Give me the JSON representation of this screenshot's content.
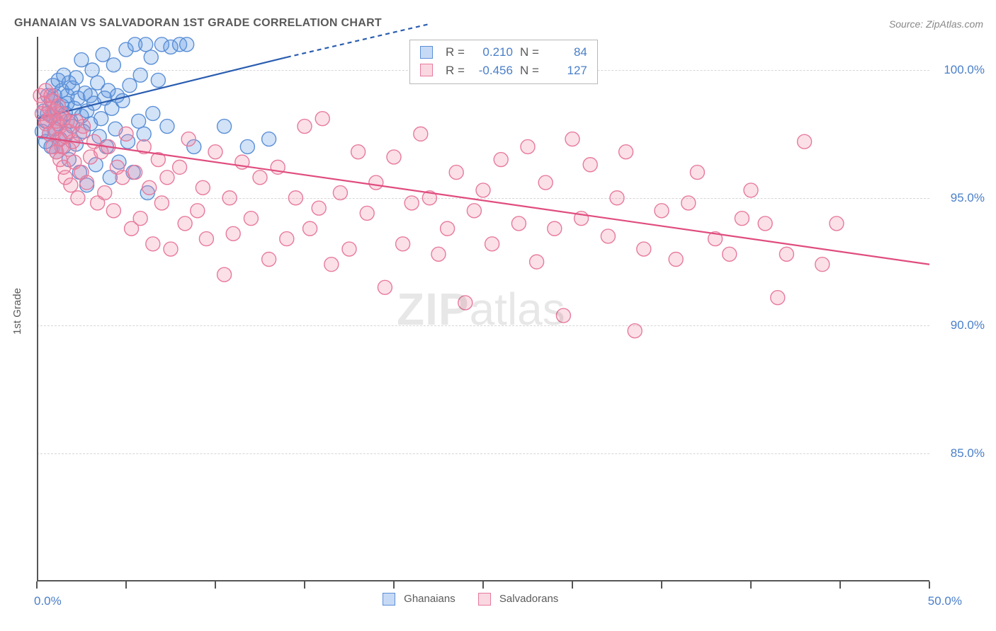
{
  "chart": {
    "type": "scatter",
    "title": "GHANAIAN VS SALVADORAN 1ST GRADE CORRELATION CHART",
    "source": "Source: ZipAtlas.com",
    "ylabel": "1st Grade",
    "background_color": "#ffffff",
    "title_color": "#5a5a5a",
    "title_fontsize": 16,
    "label_fontsize": 15,
    "tick_color": "#4a7fc9",
    "tick_fontsize": 17,
    "axis_color": "#555555",
    "grid_color": "#d6d6d6",
    "watermark": {
      "zip": "ZIP",
      "atlas": "atlas"
    },
    "xlim": [
      0,
      50
    ],
    "ylim": [
      80,
      101.3
    ],
    "xtick_labels": [
      {
        "v": 0,
        "label": "0.0%"
      },
      {
        "v": 50,
        "label": "50.0%"
      }
    ],
    "xtick_marks": [
      0,
      5,
      10,
      15,
      20,
      25,
      30,
      35,
      40,
      45,
      50
    ],
    "ytick_labels": [
      {
        "v": 85,
        "label": "85.0%"
      },
      {
        "v": 90,
        "label": "90.0%"
      },
      {
        "v": 95,
        "label": "95.0%"
      },
      {
        "v": 100,
        "label": "100.0%"
      }
    ],
    "marker_radius": 10,
    "marker_stroke_width": 1.4,
    "line_width": 2.2,
    "series": [
      {
        "name": "Ghanaians",
        "color_fill": "rgba(95,150,225,0.28)",
        "color_stroke": "#5a8fd6",
        "line_color": "#2a5db0",
        "R": "0.210",
        "N": "84",
        "trend": {
          "x1": 0,
          "y1": 98.1,
          "x2_solid": 14,
          "y2_solid": 100.5,
          "x2_dash": 22,
          "y2_dash": 101.8
        },
        "points": [
          [
            0.3,
            97.6
          ],
          [
            0.4,
            98.4
          ],
          [
            0.5,
            98.0
          ],
          [
            0.5,
            97.2
          ],
          [
            0.6,
            99.0
          ],
          [
            0.6,
            98.3
          ],
          [
            0.7,
            97.5
          ],
          [
            0.8,
            98.8
          ],
          [
            0.8,
            97.0
          ],
          [
            0.9,
            99.4
          ],
          [
            0.9,
            98.2
          ],
          [
            1.0,
            97.7
          ],
          [
            1.0,
            99.0
          ],
          [
            1.1,
            98.5
          ],
          [
            1.1,
            96.8
          ],
          [
            1.2,
            97.9
          ],
          [
            1.2,
            99.6
          ],
          [
            1.3,
            98.1
          ],
          [
            1.3,
            97.3
          ],
          [
            1.4,
            99.2
          ],
          [
            1.4,
            98.6
          ],
          [
            1.5,
            97.0
          ],
          [
            1.5,
            99.8
          ],
          [
            1.6,
            98.3
          ],
          [
            1.6,
            97.5
          ],
          [
            1.7,
            99.0
          ],
          [
            1.7,
            98.7
          ],
          [
            1.8,
            96.5
          ],
          [
            1.8,
            99.5
          ],
          [
            1.9,
            98.0
          ],
          [
            2.0,
            97.8
          ],
          [
            2.0,
            99.3
          ],
          [
            2.1,
            98.5
          ],
          [
            2.2,
            97.1
          ],
          [
            2.2,
            99.7
          ],
          [
            2.3,
            98.9
          ],
          [
            2.4,
            96.0
          ],
          [
            2.5,
            98.2
          ],
          [
            2.5,
            100.4
          ],
          [
            2.6,
            97.6
          ],
          [
            2.7,
            99.1
          ],
          [
            2.8,
            98.4
          ],
          [
            2.8,
            95.5
          ],
          [
            3.0,
            99.0
          ],
          [
            3.0,
            97.9
          ],
          [
            3.1,
            100.0
          ],
          [
            3.2,
            98.7
          ],
          [
            3.3,
            96.3
          ],
          [
            3.4,
            99.5
          ],
          [
            3.5,
            97.4
          ],
          [
            3.6,
            98.1
          ],
          [
            3.7,
            100.6
          ],
          [
            3.8,
            98.9
          ],
          [
            3.9,
            97.0
          ],
          [
            4.0,
            99.2
          ],
          [
            4.1,
            95.8
          ],
          [
            4.2,
            98.5
          ],
          [
            4.3,
            100.2
          ],
          [
            4.4,
            97.7
          ],
          [
            4.5,
            99.0
          ],
          [
            4.6,
            96.4
          ],
          [
            4.8,
            98.8
          ],
          [
            5.0,
            100.8
          ],
          [
            5.1,
            97.2
          ],
          [
            5.2,
            99.4
          ],
          [
            5.4,
            96.0
          ],
          [
            5.5,
            101.0
          ],
          [
            5.7,
            98.0
          ],
          [
            5.8,
            99.8
          ],
          [
            6.0,
            97.5
          ],
          [
            6.1,
            101.0
          ],
          [
            6.2,
            95.2
          ],
          [
            6.4,
            100.5
          ],
          [
            6.5,
            98.3
          ],
          [
            6.8,
            99.6
          ],
          [
            7.0,
            101.0
          ],
          [
            7.3,
            97.8
          ],
          [
            7.5,
            100.9
          ],
          [
            8.0,
            101.0
          ],
          [
            8.4,
            101.0
          ],
          [
            8.8,
            97.0
          ],
          [
            10.5,
            97.8
          ],
          [
            11.8,
            97.0
          ],
          [
            13.0,
            97.3
          ]
        ]
      },
      {
        "name": "Salvadorans",
        "color_fill": "rgba(240,135,165,0.26)",
        "color_stroke": "#e77a9c",
        "line_color": "#e04c7e",
        "R": "-0.456",
        "N": "127",
        "trend": {
          "x1": 0,
          "y1": 97.4,
          "x2_solid": 50,
          "y2_solid": 92.4,
          "x2_dash": 50,
          "y2_dash": 92.4
        },
        "points": [
          [
            0.2,
            99.0
          ],
          [
            0.3,
            98.3
          ],
          [
            0.4,
            98.7
          ],
          [
            0.5,
            97.9
          ],
          [
            0.5,
            99.2
          ],
          [
            0.6,
            98.0
          ],
          [
            0.7,
            98.5
          ],
          [
            0.7,
            97.5
          ],
          [
            0.8,
            99.0
          ],
          [
            0.8,
            98.2
          ],
          [
            0.9,
            97.0
          ],
          [
            0.9,
            98.8
          ],
          [
            1.0,
            97.6
          ],
          [
            1.0,
            98.4
          ],
          [
            1.1,
            96.8
          ],
          [
            1.1,
            98.0
          ],
          [
            1.2,
            97.3
          ],
          [
            1.2,
            98.6
          ],
          [
            1.3,
            96.5
          ],
          [
            1.3,
            97.8
          ],
          [
            1.4,
            98.3
          ],
          [
            1.4,
            97.0
          ],
          [
            1.5,
            96.2
          ],
          [
            1.5,
            98.1
          ],
          [
            1.6,
            97.4
          ],
          [
            1.6,
            95.8
          ],
          [
            1.7,
            98.0
          ],
          [
            1.8,
            96.9
          ],
          [
            1.8,
            97.6
          ],
          [
            1.9,
            95.5
          ],
          [
            2.0,
            97.2
          ],
          [
            2.1,
            96.4
          ],
          [
            2.2,
            98.0
          ],
          [
            2.3,
            95.0
          ],
          [
            2.4,
            97.5
          ],
          [
            2.5,
            96.0
          ],
          [
            2.6,
            97.8
          ],
          [
            2.8,
            95.6
          ],
          [
            3.0,
            96.6
          ],
          [
            3.2,
            97.2
          ],
          [
            3.4,
            94.8
          ],
          [
            3.6,
            96.8
          ],
          [
            3.8,
            95.2
          ],
          [
            4.0,
            97.0
          ],
          [
            4.3,
            94.5
          ],
          [
            4.5,
            96.2
          ],
          [
            4.8,
            95.8
          ],
          [
            5.0,
            97.5
          ],
          [
            5.3,
            93.8
          ],
          [
            5.5,
            96.0
          ],
          [
            5.8,
            94.2
          ],
          [
            6.0,
            97.0
          ],
          [
            6.3,
            95.4
          ],
          [
            6.5,
            93.2
          ],
          [
            6.8,
            96.5
          ],
          [
            7.0,
            94.8
          ],
          [
            7.3,
            95.8
          ],
          [
            7.5,
            93.0
          ],
          [
            8.0,
            96.2
          ],
          [
            8.3,
            94.0
          ],
          [
            8.5,
            97.3
          ],
          [
            9.0,
            94.5
          ],
          [
            9.3,
            95.4
          ],
          [
            9.5,
            93.4
          ],
          [
            10.0,
            96.8
          ],
          [
            10.5,
            92.0
          ],
          [
            10.8,
            95.0
          ],
          [
            11.0,
            93.6
          ],
          [
            11.5,
            96.4
          ],
          [
            12.0,
            94.2
          ],
          [
            12.5,
            95.8
          ],
          [
            13.0,
            92.6
          ],
          [
            13.5,
            96.2
          ],
          [
            14.0,
            93.4
          ],
          [
            14.5,
            95.0
          ],
          [
            15.0,
            97.8
          ],
          [
            15.3,
            93.8
          ],
          [
            15.8,
            94.6
          ],
          [
            16.0,
            98.1
          ],
          [
            16.5,
            92.4
          ],
          [
            17.0,
            95.2
          ],
          [
            17.5,
            93.0
          ],
          [
            18.0,
            96.8
          ],
          [
            18.5,
            94.4
          ],
          [
            19.0,
            95.6
          ],
          [
            19.5,
            91.5
          ],
          [
            20.0,
            96.6
          ],
          [
            20.5,
            93.2
          ],
          [
            21.0,
            94.8
          ],
          [
            21.5,
            97.5
          ],
          [
            22.0,
            95.0
          ],
          [
            22.5,
            92.8
          ],
          [
            23.0,
            93.8
          ],
          [
            23.5,
            96.0
          ],
          [
            24.0,
            90.9
          ],
          [
            24.5,
            94.5
          ],
          [
            25.0,
            95.3
          ],
          [
            25.5,
            93.2
          ],
          [
            26.0,
            96.5
          ],
          [
            27.0,
            94.0
          ],
          [
            27.5,
            97.0
          ],
          [
            28.0,
            92.5
          ],
          [
            28.5,
            95.6
          ],
          [
            29.0,
            93.8
          ],
          [
            29.5,
            90.4
          ],
          [
            30.0,
            97.3
          ],
          [
            30.5,
            94.2
          ],
          [
            31.0,
            96.3
          ],
          [
            32.0,
            93.5
          ],
          [
            32.5,
            95.0
          ],
          [
            33.0,
            96.8
          ],
          [
            33.5,
            89.8
          ],
          [
            34.0,
            93.0
          ],
          [
            35.0,
            94.5
          ],
          [
            35.8,
            92.6
          ],
          [
            36.5,
            94.8
          ],
          [
            37.0,
            96.0
          ],
          [
            38.0,
            93.4
          ],
          [
            38.8,
            92.8
          ],
          [
            39.5,
            94.2
          ],
          [
            40.0,
            95.3
          ],
          [
            40.8,
            94.0
          ],
          [
            41.5,
            91.1
          ],
          [
            42.0,
            92.8
          ],
          [
            43.0,
            97.2
          ],
          [
            44.0,
            92.4
          ],
          [
            44.8,
            94.0
          ]
        ]
      }
    ],
    "legend_bottom": [
      {
        "label": "Ghanaians",
        "fill": "rgba(95,150,225,0.35)",
        "stroke": "#5a8fd6"
      },
      {
        "label": "Salvadorans",
        "fill": "rgba(240,135,165,0.32)",
        "stroke": "#e77a9c"
      }
    ],
    "stats_labels": {
      "R": "R =",
      "N": "N ="
    }
  }
}
